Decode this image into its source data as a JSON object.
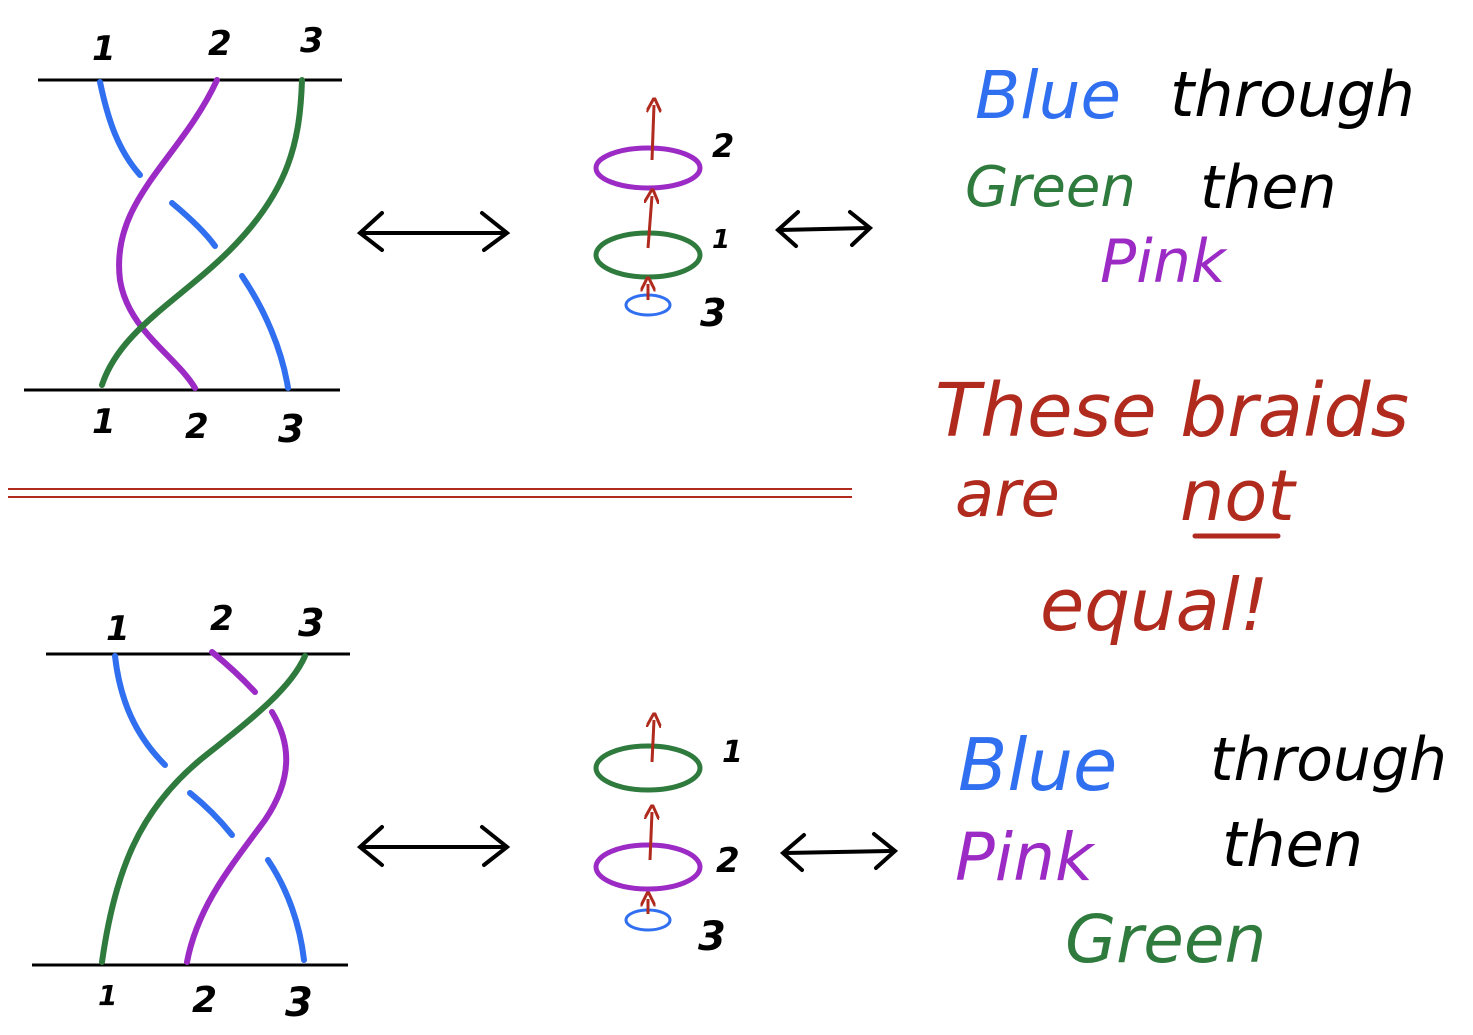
{
  "colors": {
    "blue": "#2f6ff0",
    "green": "#2f7a3d",
    "pink": "#9b2bc4",
    "red": "#b02a1e",
    "black": "#000000"
  },
  "top_braid": {
    "top_labels": [
      "1",
      "2",
      "3"
    ],
    "bottom_labels": [
      "1",
      "2",
      "3"
    ]
  },
  "bottom_braid": {
    "top_labels": [
      "1",
      "2",
      "3"
    ],
    "bottom_labels": [
      "1",
      "2",
      "3"
    ]
  },
  "top_loops": {
    "labels": [
      "2",
      "1",
      "3"
    ]
  },
  "bottom_loops": {
    "labels": [
      "1",
      "2",
      "3"
    ]
  },
  "top_text": {
    "line1_a": "Blue",
    "line1_b": "through",
    "line2_a": "Green",
    "line2_b": "then",
    "line3": "Pink"
  },
  "bottom_text": {
    "line1_a": "Blue",
    "line1_b": "through",
    "line2_a": "Pink",
    "line2_b": "then",
    "line3": "Green"
  },
  "conclusion": {
    "line1": "These braids",
    "line2_a": "are",
    "line2_b": "not",
    "line3": "equal!"
  },
  "arrows": {
    "double_arrow_icon": "left-right-arrow-icon"
  }
}
